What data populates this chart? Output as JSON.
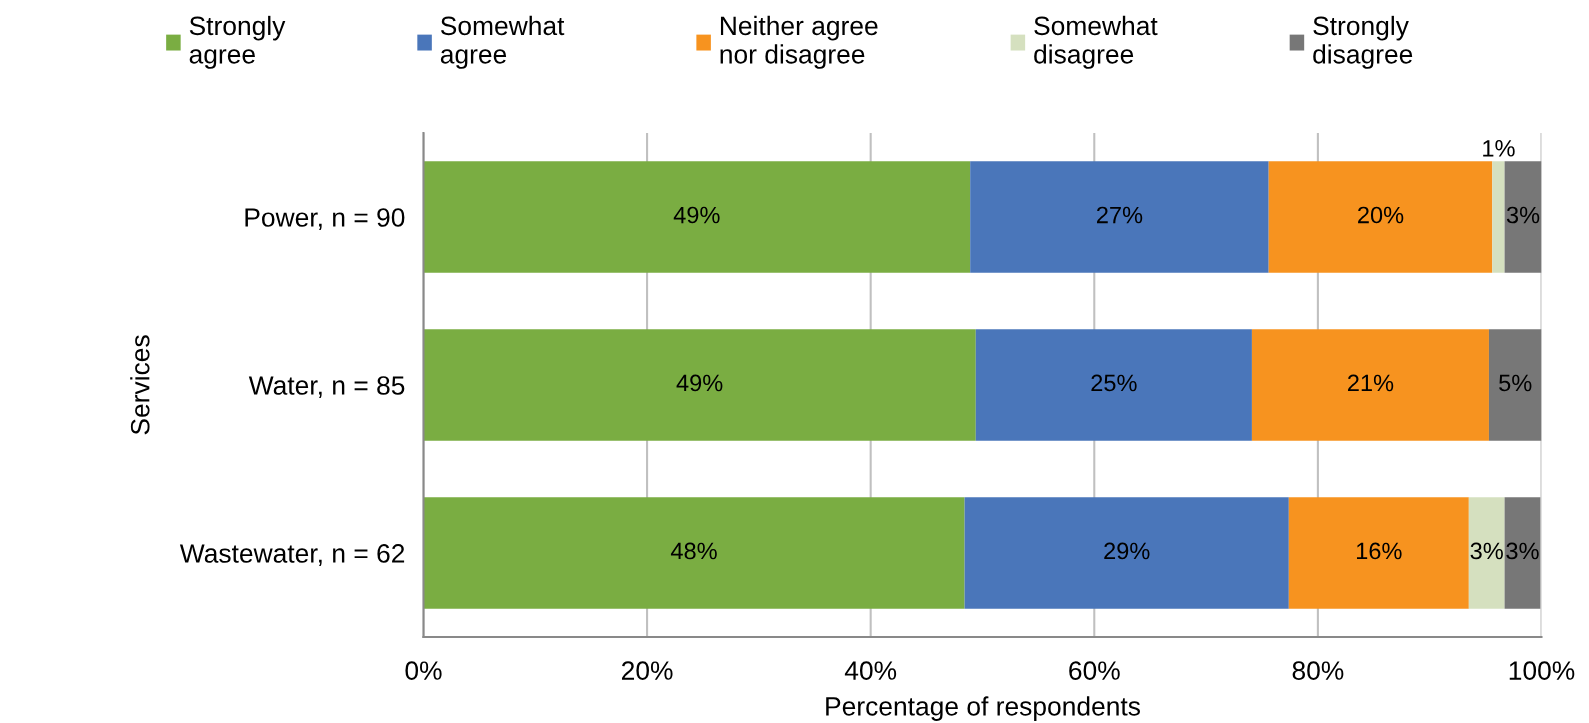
{
  "chart_data": {
    "type": "bar",
    "orientation": "horizontal",
    "stacked": true,
    "categories": [
      "Power, n = 90",
      "Water, n = 85",
      "Wastewater, n = 62"
    ],
    "series": [
      {
        "name": "Strongly\nagree",
        "color": "#7aad42",
        "values": [
          48.9,
          49.4,
          48.4
        ],
        "value_labels": [
          "49%",
          "49%",
          "48%"
        ]
      },
      {
        "name": "Somewhat\nagree",
        "color": "#4a76ba",
        "values": [
          26.7,
          24.7,
          29.0
        ],
        "value_labels": [
          "27%",
          "25%",
          "29%"
        ]
      },
      {
        "name": "Neither agree\nnor disagree",
        "color": "#f7931f",
        "values": [
          20.0,
          21.2,
          16.1
        ],
        "value_labels": [
          "20%",
          "21%",
          "16%"
        ]
      },
      {
        "name": "Somewhat\ndisagree",
        "color": "#d5e0bf",
        "values": [
          1.1,
          null,
          3.2
        ],
        "value_labels": [
          "1%",
          null,
          "3%"
        ]
      },
      {
        "name": "Strongly\ndisagree",
        "color": "#777777",
        "values": [
          3.3,
          4.7,
          3.2
        ],
        "value_labels": [
          "3%",
          "5%",
          "3%"
        ]
      }
    ],
    "xlabel": "Percentage of respondents",
    "ylabel": "Services",
    "xlim": [
      0,
      100
    ],
    "xticks": [
      {
        "value": 0,
        "label": "0%"
      },
      {
        "value": 20,
        "label": "20%"
      },
      {
        "value": 40,
        "label": "40%"
      },
      {
        "value": 60,
        "label": "60%"
      },
      {
        "value": 80,
        "label": "80%"
      },
      {
        "value": 100,
        "label": "100%"
      }
    ],
    "grid": "x",
    "legend": "top"
  }
}
